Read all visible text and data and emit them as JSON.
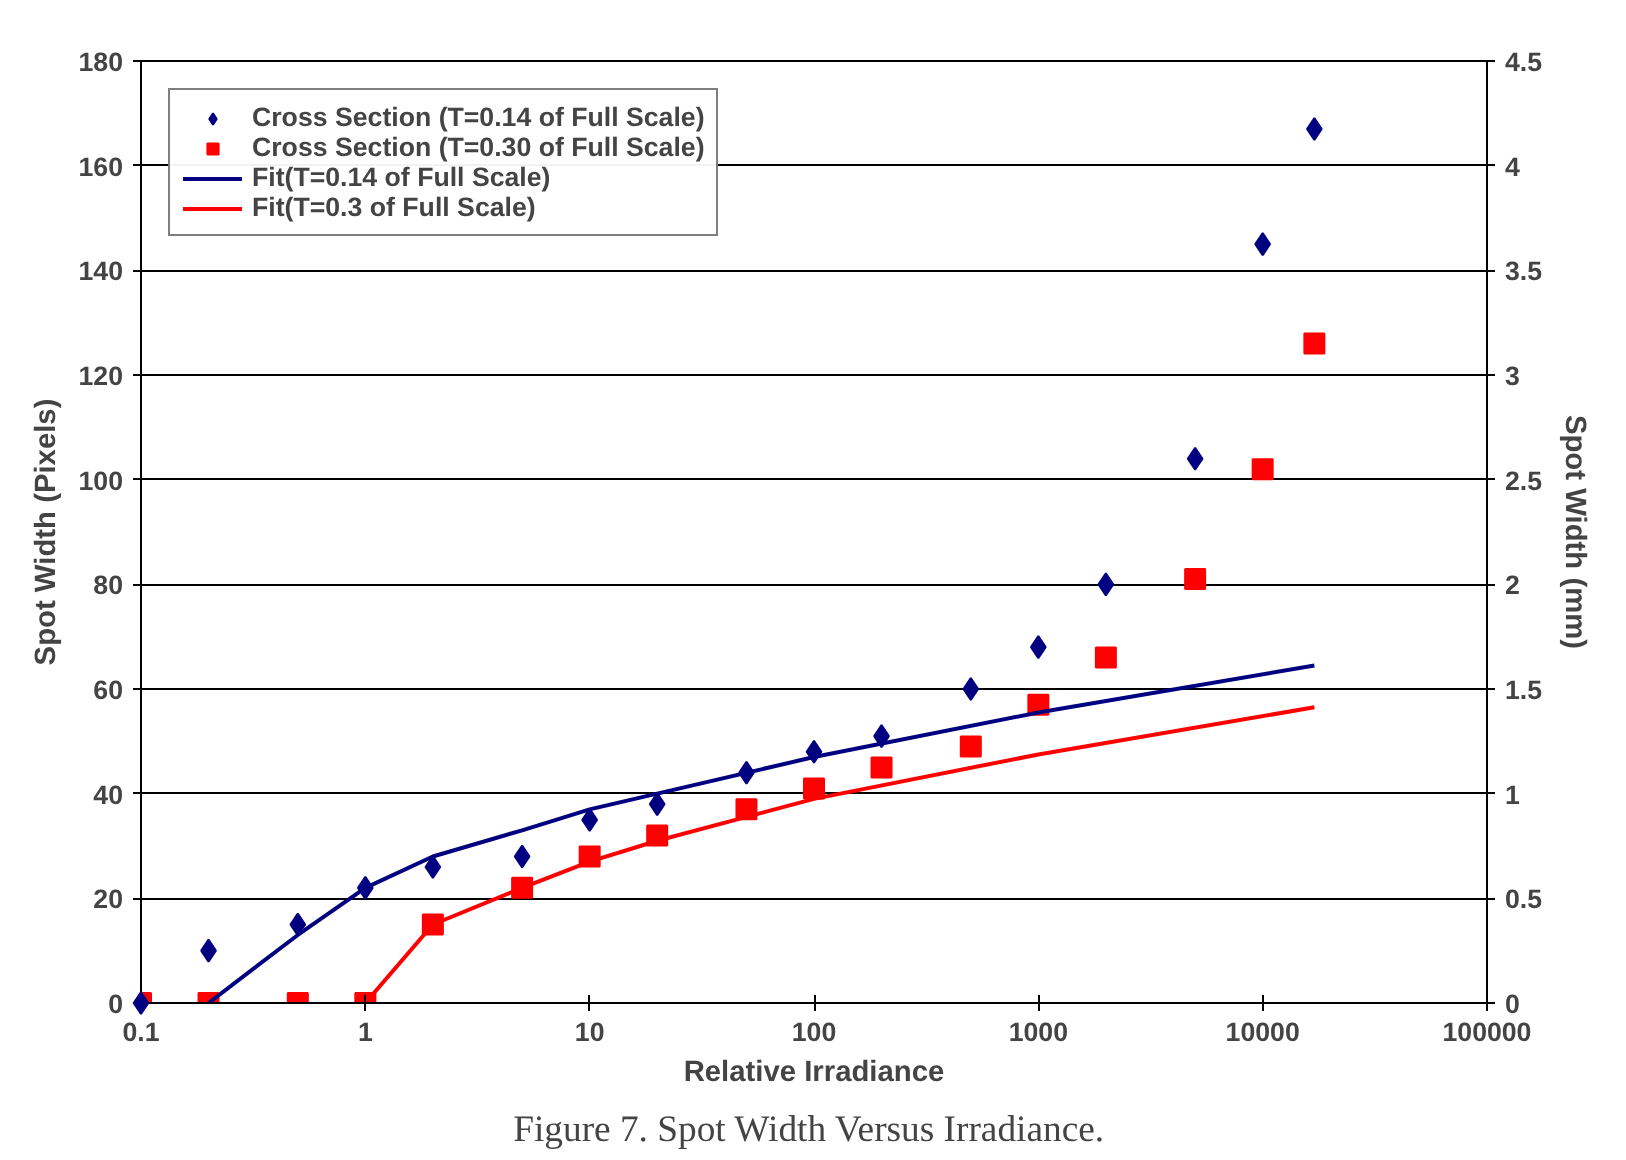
{
  "chart_data": {
    "type": "scatter",
    "xlabel": "Relative Irradiance",
    "ylabel": "Spot Width (Pixels)",
    "y2label": "Spot Width (mm)",
    "log": "x",
    "xlim": [
      0.1,
      100000
    ],
    "xticks": [
      0.1,
      1,
      10,
      100,
      1000,
      10000,
      100000
    ],
    "ylim": [
      0,
      180
    ],
    "yticks": [
      0,
      20,
      40,
      60,
      80,
      100,
      120,
      140,
      160,
      180
    ],
    "y2lim": [
      0,
      4.5
    ],
    "y2ticks": [
      0,
      0.5,
      1,
      1.5,
      2,
      2.5,
      3,
      3.5,
      4,
      4.5
    ],
    "grid": "y",
    "legend": "top left",
    "annotations": [
      "Figure 7.  Spot Width Versus Irradiance."
    ],
    "series": [
      {
        "name": "Cross Section (T=0.14 of Full Scale)",
        "marker": "diamond",
        "color": "#000080",
        "x": [
          0.1,
          0.2,
          0.5,
          1,
          2,
          5,
          10,
          20,
          50,
          100,
          200,
          500,
          1000,
          2000,
          5000,
          10000,
          17000
        ],
        "values": [
          0,
          10,
          15,
          22,
          26,
          28,
          35,
          38,
          44,
          48,
          51,
          60,
          68,
          80,
          104,
          145,
          167
        ]
      },
      {
        "name": "Cross Section (T=0.30 of Full Scale)",
        "marker": "square",
        "color": "#ff0000",
        "x": [
          0.1,
          0.2,
          0.5,
          1,
          2,
          5,
          10,
          20,
          50,
          100,
          200,
          500,
          1000,
          2000,
          5000,
          10000,
          17000
        ],
        "values": [
          0,
          0,
          0,
          0,
          15,
          22,
          28,
          32,
          37,
          41,
          45,
          49,
          57,
          66,
          81,
          102,
          126
        ]
      },
      {
        "name": "Fit(T=0.14 of Full Scale)",
        "type": "line",
        "marker": "none",
        "line_style": "solid",
        "color": "#000080",
        "x": [
          0.2,
          0.5,
          1,
          2,
          5,
          10,
          100,
          1000,
          17000
        ],
        "values": [
          0,
          13,
          22,
          28,
          33,
          37,
          47,
          55.5,
          64.5
        ]
      },
      {
        "name": "Fit(T=0.3 of Full Scale)",
        "type": "line",
        "marker": "none",
        "line_style": "solid",
        "color": "#ff0000",
        "x": [
          1,
          2,
          5,
          10,
          20,
          100,
          1000,
          17000
        ],
        "values": [
          0,
          15,
          22,
          27,
          31,
          39,
          47.5,
          56.5
        ]
      }
    ]
  }
}
